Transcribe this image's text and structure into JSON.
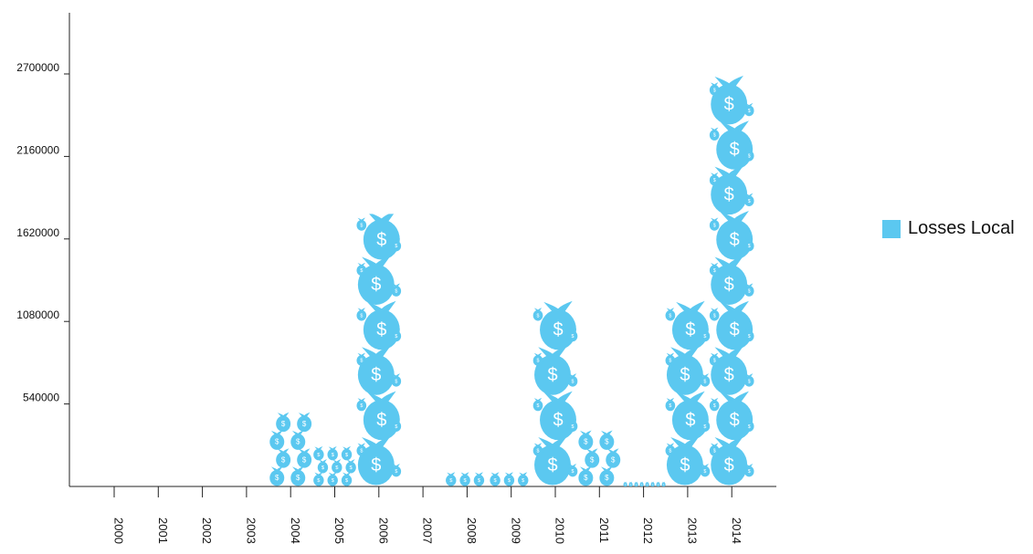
{
  "chart_data": {
    "type": "bar",
    "title": "",
    "xlabel": "",
    "ylabel": "",
    "categories": [
      "2000",
      "2001",
      "2002",
      "2003",
      "2004",
      "2005",
      "2006",
      "2007",
      "2008",
      "2009",
      "2010",
      "2011",
      "2012",
      "2013",
      "2014"
    ],
    "series": [
      {
        "name": "Losses Local",
        "color": "#5bc8f0",
        "values": [
          0,
          0,
          0,
          0,
          500000,
          280000,
          1760000,
          0,
          120000,
          130000,
          1400000,
          450000,
          25000,
          1400000,
          2880000
        ]
      }
    ],
    "ylim": [
      0,
      3000000
    ],
    "yticks": [
      540000,
      1080000,
      1620000,
      2160000,
      2700000
    ],
    "grid": false,
    "legend_position": "right",
    "mark_icon": "money-bag-icon"
  },
  "legend": {
    "label": "Losses Local",
    "color": "#5bc8f0"
  }
}
